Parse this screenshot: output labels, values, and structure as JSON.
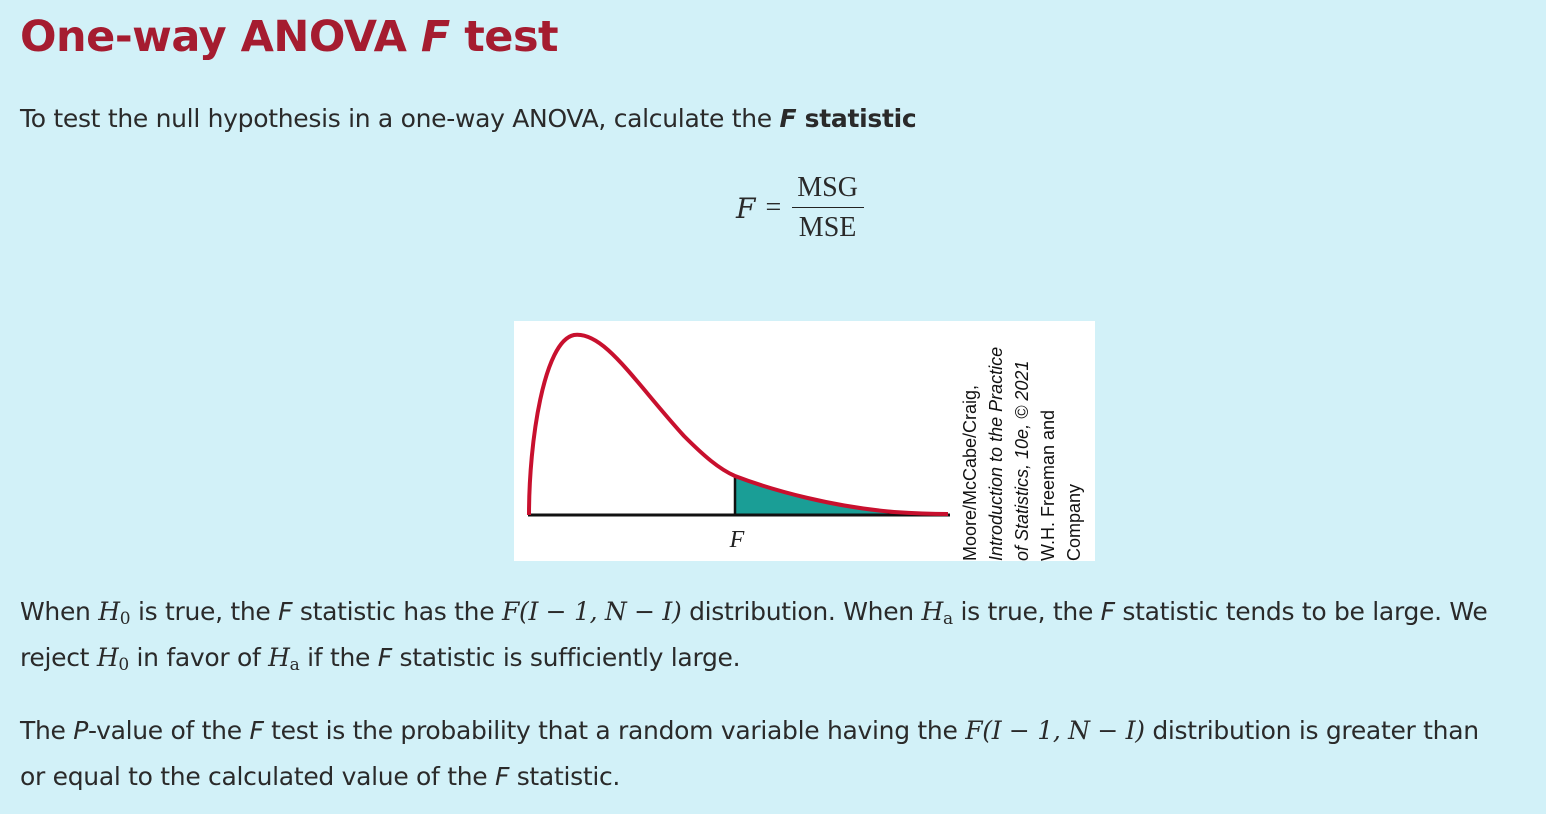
{
  "title": {
    "main": "One-way ANOVA ",
    "italic": "F",
    "end": " test"
  },
  "intro": {
    "text": "To test the null hypothesis in a one-way ANOVA, calculate the ",
    "bold_italic": "F",
    "bold": " statistic"
  },
  "equation": {
    "lhs": "F",
    "eq": "=",
    "numerator": "MSG",
    "denominator": "MSE"
  },
  "figure": {
    "x_label": "F",
    "credit_lines": [
      "Moore/McCabe/Craig,",
      "Introduction to the Practice",
      "of Statistics, 10e, © 2021",
      "W.H. Freeman and",
      "Company"
    ],
    "colors": {
      "curve": "#c8102e",
      "shade": "#1a9e96",
      "axis": "#111111"
    }
  },
  "para1": {
    "s1": "When ",
    "h0a": "H",
    "h0a_sub": "0",
    "s2": " is true, the ",
    "f1": "F",
    "s3": " statistic has the ",
    "dist": "F(I − 1, N − I)",
    "s4": " distribution. When ",
    "ha1": "H",
    "ha1_sub": "a",
    "s5": " is true, the ",
    "f2": "F",
    "s6": " statistic tends to be large. We reject ",
    "h0b": "H",
    "h0b_sub": "0",
    "s7": " in favor of ",
    "ha2": "H",
    "ha2_sub": "a",
    "s8": " if the ",
    "f3": "F",
    "s9": " statistic is sufficiently large."
  },
  "para2": {
    "s1": "The ",
    "p": "P",
    "s2": "-value of the ",
    "f1": "F",
    "s3": " test is the probability that a random variable having the ",
    "dist": "F(I − 1, N − I)",
    "s4": " distribution is greater than or equal to the calculated value of the ",
    "f2": "F",
    "s5": " statistic."
  }
}
